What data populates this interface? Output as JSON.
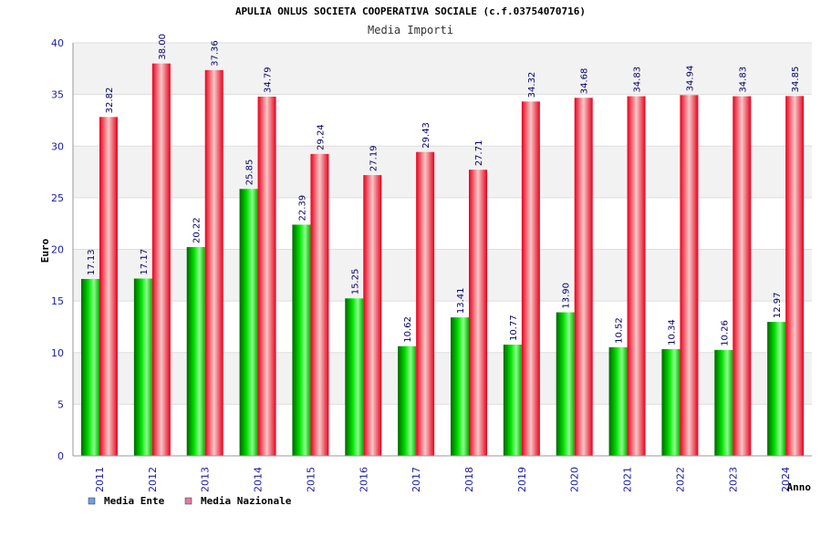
{
  "chart_data": {
    "type": "bar",
    "title": "APULIA ONLUS SOCIETA COOPERATIVA SOCIALE (c.f.03754070716)",
    "subtitle": "Media Importi",
    "xlabel": "Anno",
    "ylabel": "Euro",
    "ylim": [
      0,
      40
    ],
    "yticks": [
      "0",
      "5",
      "10",
      "15",
      "20",
      "25",
      "30",
      "35",
      "40"
    ],
    "categories": [
      "2011",
      "2012",
      "2013",
      "2014",
      "2015",
      "2016",
      "2017",
      "2018",
      "2019",
      "2020",
      "2021",
      "2022",
      "2023",
      "2024"
    ],
    "series": [
      {
        "name": "Media Ente",
        "color": "#00c800",
        "legend_color": "#6aa0e6",
        "values": [
          17.13,
          17.17,
          20.22,
          25.85,
          22.39,
          15.25,
          10.62,
          13.41,
          10.77,
          13.9,
          10.52,
          10.34,
          10.26,
          12.97
        ],
        "labels": [
          "17.13",
          "17.17",
          "20.22",
          "25.85",
          "22.39",
          "15.25",
          "10.62",
          "13.41",
          "10.77",
          "13.90",
          "10.52",
          "10.34",
          "10.26",
          "12.97"
        ]
      },
      {
        "name": "Media Nazionale",
        "color": "#e8001c",
        "legend_color": "#e07aa8",
        "values": [
          32.82,
          38.0,
          37.36,
          34.79,
          29.24,
          27.19,
          29.43,
          27.71,
          34.32,
          34.68,
          34.83,
          34.94,
          34.83,
          34.85
        ],
        "labels": [
          "32.82",
          "38.00",
          "37.36",
          "34.79",
          "29.24",
          "27.19",
          "29.43",
          "27.71",
          "34.32",
          "34.68",
          "34.83",
          "34.94",
          "34.83",
          "34.85"
        ]
      }
    ],
    "grid": true,
    "legend_position": "bottom-left"
  }
}
